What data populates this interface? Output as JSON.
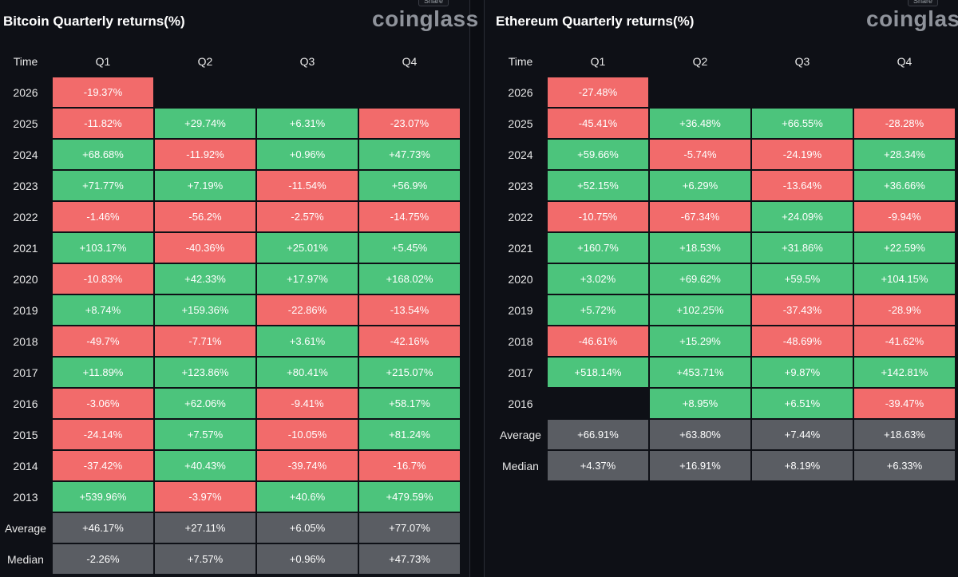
{
  "chart_data": [
    {
      "type": "table",
      "title": "Bitcoin Quarterly returns(%)",
      "brand": "coinglass",
      "share_label": "Share",
      "columns": [
        "Time",
        "Q1",
        "Q2",
        "Q3",
        "Q4"
      ],
      "rows": [
        {
          "label": "2026",
          "values": [
            "-19.37%",
            null,
            null,
            null
          ]
        },
        {
          "label": "2025",
          "values": [
            "-11.82%",
            "+29.74%",
            "+6.31%",
            "-23.07%"
          ]
        },
        {
          "label": "2024",
          "values": [
            "+68.68%",
            "-11.92%",
            "+0.96%",
            "+47.73%"
          ]
        },
        {
          "label": "2023",
          "values": [
            "+71.77%",
            "+7.19%",
            "-11.54%",
            "+56.9%"
          ]
        },
        {
          "label": "2022",
          "values": [
            "-1.46%",
            "-56.2%",
            "-2.57%",
            "-14.75%"
          ]
        },
        {
          "label": "2021",
          "values": [
            "+103.17%",
            "-40.36%",
            "+25.01%",
            "+5.45%"
          ]
        },
        {
          "label": "2020",
          "values": [
            "-10.83%",
            "+42.33%",
            "+17.97%",
            "+168.02%"
          ]
        },
        {
          "label": "2019",
          "values": [
            "+8.74%",
            "+159.36%",
            "-22.86%",
            "-13.54%"
          ]
        },
        {
          "label": "2018",
          "values": [
            "-49.7%",
            "-7.71%",
            "+3.61%",
            "-42.16%"
          ]
        },
        {
          "label": "2017",
          "values": [
            "+11.89%",
            "+123.86%",
            "+80.41%",
            "+215.07%"
          ]
        },
        {
          "label": "2016",
          "values": [
            "-3.06%",
            "+62.06%",
            "-9.41%",
            "+58.17%"
          ]
        },
        {
          "label": "2015",
          "values": [
            "-24.14%",
            "+7.57%",
            "-10.05%",
            "+81.24%"
          ]
        },
        {
          "label": "2014",
          "values": [
            "-37.42%",
            "+40.43%",
            "-39.74%",
            "-16.7%"
          ]
        },
        {
          "label": "2013",
          "values": [
            "+539.96%",
            "-3.97%",
            "+40.6%",
            "+479.59%"
          ]
        }
      ],
      "summary": [
        {
          "label": "Average",
          "values": [
            "+46.17%",
            "+27.11%",
            "+6.05%",
            "+77.07%"
          ]
        },
        {
          "label": "Median",
          "values": [
            "-2.26%",
            "+7.57%",
            "+0.96%",
            "+47.73%"
          ]
        }
      ]
    },
    {
      "type": "table",
      "title": "Ethereum Quarterly returns(%)",
      "brand": "coinglass",
      "share_label": "Share",
      "columns": [
        "Time",
        "Q1",
        "Q2",
        "Q3",
        "Q4"
      ],
      "rows": [
        {
          "label": "2026",
          "values": [
            "-27.48%",
            null,
            null,
            null
          ]
        },
        {
          "label": "2025",
          "values": [
            "-45.41%",
            "+36.48%",
            "+66.55%",
            "-28.28%"
          ]
        },
        {
          "label": "2024",
          "values": [
            "+59.66%",
            "-5.74%",
            "-24.19%",
            "+28.34%"
          ]
        },
        {
          "label": "2023",
          "values": [
            "+52.15%",
            "+6.29%",
            "-13.64%",
            "+36.66%"
          ]
        },
        {
          "label": "2022",
          "values": [
            "-10.75%",
            "-67.34%",
            "+24.09%",
            "-9.94%"
          ]
        },
        {
          "label": "2021",
          "values": [
            "+160.7%",
            "+18.53%",
            "+31.86%",
            "+22.59%"
          ]
        },
        {
          "label": "2020",
          "values": [
            "+3.02%",
            "+69.62%",
            "+59.5%",
            "+104.15%"
          ]
        },
        {
          "label": "2019",
          "values": [
            "+5.72%",
            "+102.25%",
            "-37.43%",
            "-28.9%"
          ]
        },
        {
          "label": "2018",
          "values": [
            "-46.61%",
            "+15.29%",
            "-48.69%",
            "-41.62%"
          ]
        },
        {
          "label": "2017",
          "values": [
            "+518.14%",
            "+453.71%",
            "+9.87%",
            "+142.81%"
          ]
        },
        {
          "label": "2016",
          "values": [
            null,
            "+8.95%",
            "+6.51%",
            "-39.47%"
          ]
        }
      ],
      "summary": [
        {
          "label": "Average",
          "values": [
            "+66.91%",
            "+63.80%",
            "+7.44%",
            "+18.63%"
          ]
        },
        {
          "label": "Median",
          "values": [
            "+4.37%",
            "+16.91%",
            "+8.19%",
            "+6.33%"
          ]
        }
      ]
    }
  ],
  "colors": {
    "positive": "#4cc47c",
    "negative": "#f26b6b",
    "summary": "#5a5d63",
    "background": "#0e1016"
  }
}
